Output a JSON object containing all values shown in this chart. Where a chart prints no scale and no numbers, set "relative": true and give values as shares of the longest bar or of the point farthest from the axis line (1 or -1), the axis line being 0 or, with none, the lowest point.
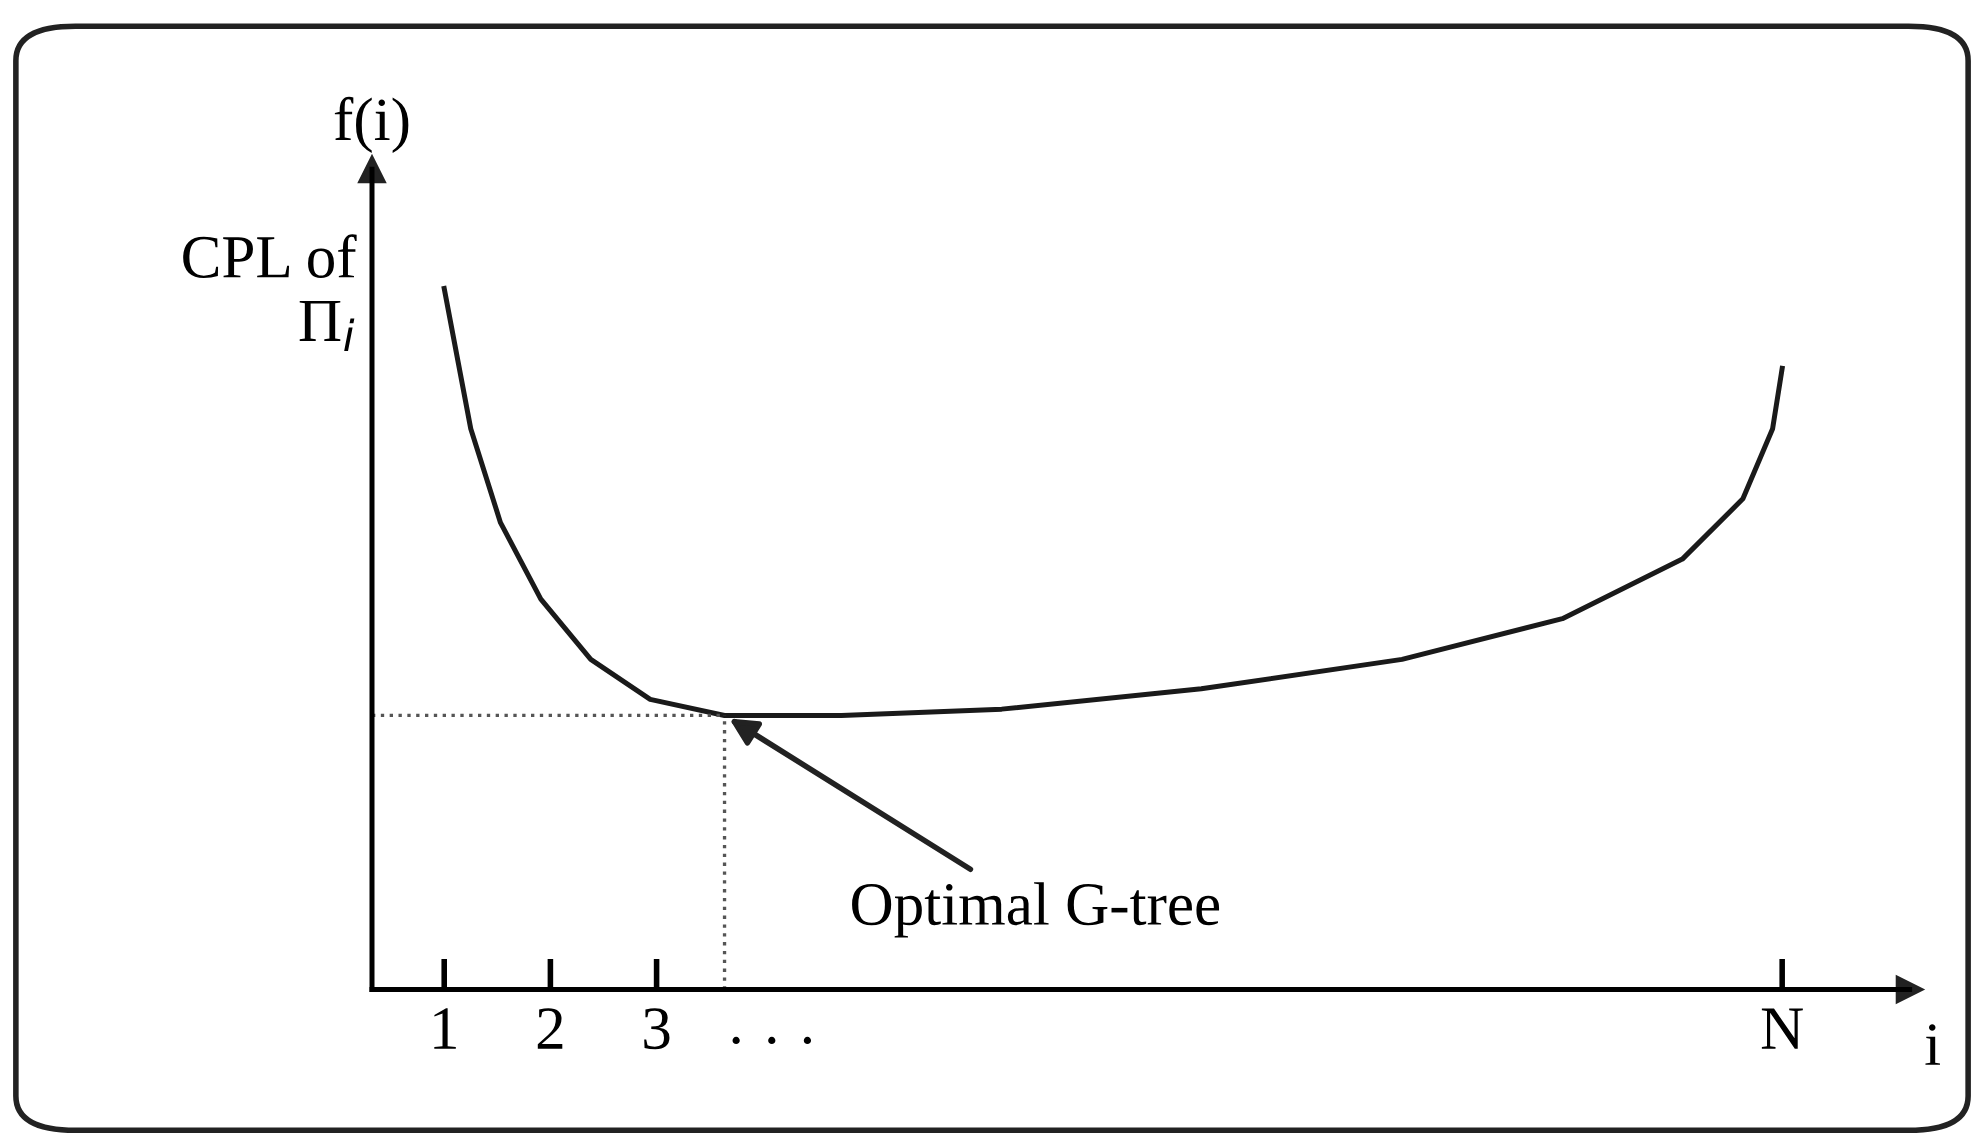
{
  "chart_data": {
    "type": "line",
    "relative": true,
    "ylabel": "f(i)",
    "xlabel": "i",
    "x": [
      1,
      1.25,
      1.53,
      1.91,
      2.38,
      2.94,
      3.64,
      4.74,
      6.25,
      8.13,
      10.02,
      11.53,
      12.66,
      13.23,
      13.51,
      13.6
    ],
    "series": [
      {
        "color": "#1a1a1a",
        "values": [
          1,
          0.8,
          0.666,
          0.557,
          0.471,
          0.414,
          0.391,
          0.391,
          0.4,
          0.429,
          0.471,
          0.529,
          0.614,
          0.7,
          0.8,
          0.886
        ]
      }
    ],
    "xlim": [
      0.32,
      14.8
    ],
    "xticks": [
      {
        "value": 1,
        "label": "1"
      },
      {
        "value": 2,
        "label": "2"
      },
      {
        "value": 3,
        "label": "3"
      },
      {
        "value": 13.6,
        "label": "N"
      }
    ],
    "tick_labels": "x",
    "grid": false,
    "marker": "none",
    "line_style": "solid",
    "ref_lines": [
      {
        "axis": "x",
        "value": 3.64,
        "color": "#555555",
        "line_style": "dotted"
      },
      {
        "axis": "y",
        "value": 0.391,
        "color": "#555555",
        "line_style": "dotted"
      }
    ],
    "annotations": [
      {
        "text": "Optimal G-tree",
        "x": 3.64,
        "y": 0.391
      },
      "CPL of\nΠ$_{i}$",
      "· · ·"
    ]
  }
}
